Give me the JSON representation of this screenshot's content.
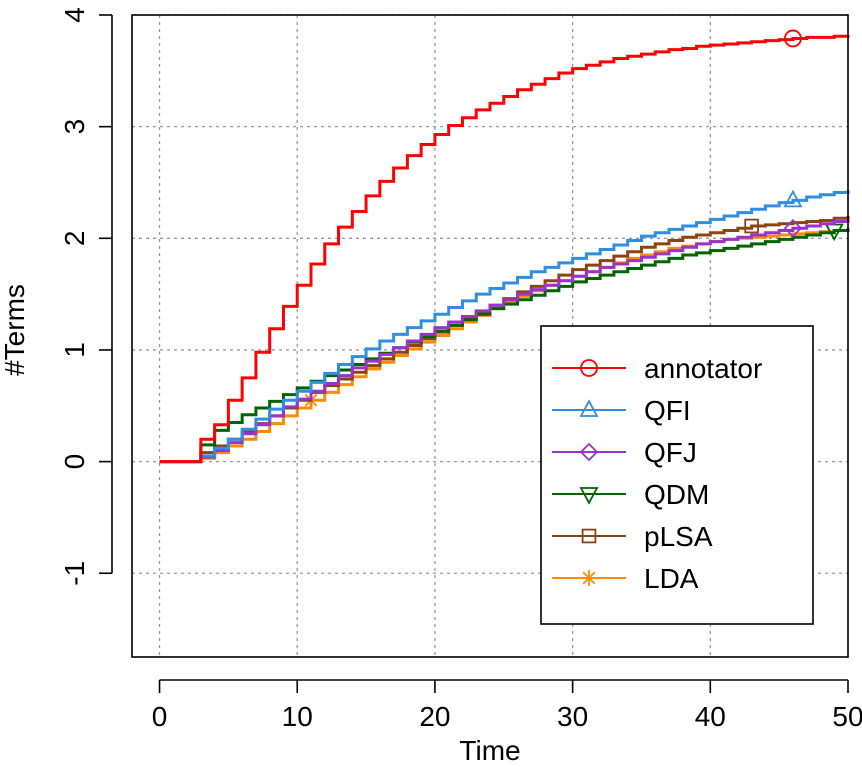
{
  "chart_data": {
    "type": "line",
    "title": "",
    "xlabel": "Time",
    "ylabel": "#Terms",
    "xlim": [
      -2,
      50
    ],
    "ylim": [
      -1.75,
      4
    ],
    "xticks": [
      0,
      10,
      20,
      30,
      40,
      50
    ],
    "xtick_labels": [
      "0",
      "10",
      "20",
      "30",
      "40",
      "50"
    ],
    "yticks": [
      -1,
      0,
      1,
      2,
      3,
      4
    ],
    "ytick_labels": [
      "-1",
      "0",
      "1",
      "2",
      "3",
      "4"
    ],
    "grid": true,
    "line_style": "step",
    "legend_position": "lower-right",
    "series": [
      {
        "name": "annotator",
        "color": "#ff0000",
        "marker": "circle",
        "marker_x": 46,
        "x": [
          0,
          3,
          4,
          5,
          6,
          7,
          8,
          9,
          10,
          11,
          12,
          13,
          14,
          15,
          16,
          17,
          18,
          19,
          20,
          21,
          22,
          23,
          24,
          25,
          26,
          27,
          28,
          29,
          30,
          31,
          32,
          33,
          34,
          35,
          36,
          37,
          38,
          39,
          40,
          41,
          42,
          43,
          44,
          45,
          46,
          47,
          48,
          49,
          50
        ],
        "y": [
          0,
          0.2,
          0.33,
          0.55,
          0.75,
          0.98,
          1.19,
          1.39,
          1.58,
          1.77,
          1.95,
          2.1,
          2.24,
          2.38,
          2.51,
          2.63,
          2.74,
          2.84,
          2.93,
          3.01,
          3.08,
          3.15,
          3.21,
          3.27,
          3.33,
          3.38,
          3.43,
          3.48,
          3.52,
          3.55,
          3.58,
          3.61,
          3.63,
          3.65,
          3.67,
          3.69,
          3.7,
          3.72,
          3.73,
          3.74,
          3.75,
          3.76,
          3.77,
          3.78,
          3.79,
          3.8,
          3.8,
          3.81,
          3.82
        ]
      },
      {
        "name": "QFI",
        "color": "#2f8ee0",
        "marker": "triangle-up",
        "marker_x": 46,
        "x": [
          0,
          3,
          4,
          5,
          6,
          7,
          8,
          9,
          10,
          11,
          12,
          13,
          14,
          15,
          16,
          17,
          18,
          19,
          20,
          21,
          22,
          23,
          24,
          25,
          26,
          27,
          28,
          29,
          30,
          31,
          32,
          33,
          34,
          35,
          36,
          37,
          38,
          39,
          40,
          41,
          42,
          43,
          44,
          45,
          46,
          47,
          48,
          49,
          50
        ],
        "y": [
          0,
          0.05,
          0.12,
          0.2,
          0.29,
          0.38,
          0.47,
          0.55,
          0.63,
          0.71,
          0.79,
          0.87,
          0.94,
          1.01,
          1.08,
          1.14,
          1.2,
          1.26,
          1.32,
          1.38,
          1.44,
          1.5,
          1.55,
          1.6,
          1.65,
          1.7,
          1.74,
          1.78,
          1.82,
          1.86,
          1.9,
          1.94,
          1.98,
          2.02,
          2.05,
          2.08,
          2.11,
          2.14,
          2.17,
          2.2,
          2.23,
          2.26,
          2.29,
          2.32,
          2.34,
          2.37,
          2.39,
          2.41,
          2.43
        ]
      },
      {
        "name": "QFJ",
        "color": "#9a32cd",
        "marker": "diamond",
        "marker_x": 46,
        "x": [
          0,
          3,
          4,
          5,
          6,
          7,
          8,
          9,
          10,
          11,
          12,
          13,
          14,
          15,
          16,
          17,
          18,
          19,
          20,
          21,
          22,
          23,
          24,
          25,
          26,
          27,
          28,
          29,
          30,
          31,
          32,
          33,
          34,
          35,
          36,
          37,
          38,
          39,
          40,
          41,
          42,
          43,
          44,
          45,
          46,
          47,
          48,
          49,
          50
        ],
        "y": [
          0,
          0.04,
          0.1,
          0.17,
          0.25,
          0.33,
          0.41,
          0.49,
          0.56,
          0.63,
          0.7,
          0.77,
          0.84,
          0.9,
          0.96,
          1.02,
          1.08,
          1.14,
          1.2,
          1.25,
          1.3,
          1.35,
          1.4,
          1.45,
          1.5,
          1.54,
          1.58,
          1.62,
          1.66,
          1.7,
          1.74,
          1.77,
          1.8,
          1.83,
          1.86,
          1.89,
          1.92,
          1.95,
          1.97,
          1.99,
          2.01,
          2.03,
          2.05,
          2.07,
          2.09,
          2.11,
          2.13,
          2.15,
          2.17
        ]
      },
      {
        "name": "QDM",
        "color": "#006400",
        "marker": "triangle-down",
        "marker_x": 49,
        "x": [
          0,
          3,
          4,
          5,
          6,
          7,
          8,
          9,
          10,
          11,
          12,
          13,
          14,
          15,
          16,
          17,
          18,
          19,
          20,
          21,
          22,
          23,
          24,
          25,
          26,
          27,
          28,
          29,
          30,
          31,
          32,
          33,
          34,
          35,
          36,
          37,
          38,
          39,
          40,
          41,
          42,
          43,
          44,
          45,
          46,
          47,
          48,
          49,
          50
        ],
        "y": [
          0,
          0.15,
          0.28,
          0.35,
          0.42,
          0.48,
          0.54,
          0.6,
          0.66,
          0.72,
          0.77,
          0.82,
          0.87,
          0.92,
          0.97,
          1.02,
          1.07,
          1.12,
          1.17,
          1.22,
          1.27,
          1.32,
          1.37,
          1.41,
          1.45,
          1.49,
          1.53,
          1.57,
          1.61,
          1.64,
          1.67,
          1.7,
          1.73,
          1.76,
          1.79,
          1.82,
          1.85,
          1.87,
          1.89,
          1.91,
          1.93,
          1.95,
          1.97,
          1.99,
          2.01,
          2.03,
          2.05,
          2.07,
          2.09
        ]
      },
      {
        "name": "pLSA",
        "color": "#8b4513",
        "marker": "square",
        "marker_x": 43,
        "x": [
          0,
          3,
          4,
          5,
          6,
          7,
          8,
          9,
          10,
          11,
          12,
          13,
          14,
          15,
          16,
          17,
          18,
          19,
          20,
          21,
          22,
          23,
          24,
          25,
          26,
          27,
          28,
          29,
          30,
          31,
          32,
          33,
          34,
          35,
          36,
          37,
          38,
          39,
          40,
          41,
          42,
          43,
          44,
          45,
          46,
          47,
          48,
          49,
          50
        ],
        "y": [
          0,
          0.08,
          0.14,
          0.2,
          0.27,
          0.34,
          0.41,
          0.48,
          0.55,
          0.62,
          0.68,
          0.74,
          0.8,
          0.86,
          0.92,
          0.98,
          1.04,
          1.1,
          1.16,
          1.22,
          1.28,
          1.34,
          1.4,
          1.46,
          1.52,
          1.57,
          1.62,
          1.67,
          1.72,
          1.76,
          1.8,
          1.84,
          1.88,
          1.92,
          1.95,
          1.98,
          2.01,
          2.03,
          2.05,
          2.07,
          2.09,
          2.11,
          2.12,
          2.13,
          2.14,
          2.15,
          2.16,
          2.18,
          2.2
        ]
      },
      {
        "name": "LDA",
        "color": "#ff8c00",
        "marker": "asterisk",
        "marker_x": 11,
        "x": [
          0,
          3,
          4,
          5,
          6,
          7,
          8,
          9,
          10,
          11,
          12,
          13,
          14,
          15,
          16,
          17,
          18,
          19,
          20,
          21,
          22,
          23,
          24,
          25,
          26,
          27,
          28,
          29,
          30,
          31,
          32,
          33,
          34,
          35,
          36,
          37,
          38,
          39,
          40,
          41,
          42,
          43,
          44,
          45,
          46,
          47,
          48,
          49,
          50
        ],
        "y": [
          0,
          0.03,
          0.08,
          0.14,
          0.2,
          0.27,
          0.34,
          0.41,
          0.48,
          0.55,
          0.62,
          0.69,
          0.76,
          0.83,
          0.89,
          0.95,
          1.01,
          1.07,
          1.13,
          1.19,
          1.25,
          1.31,
          1.37,
          1.43,
          1.48,
          1.53,
          1.58,
          1.62,
          1.66,
          1.7,
          1.74,
          1.78,
          1.82,
          1.85,
          1.88,
          1.91,
          1.93,
          1.95,
          1.97,
          1.99,
          2.0,
          2.01,
          2.02,
          2.03,
          2.04,
          2.05,
          2.06,
          2.07,
          2.08
        ]
      }
    ]
  }
}
